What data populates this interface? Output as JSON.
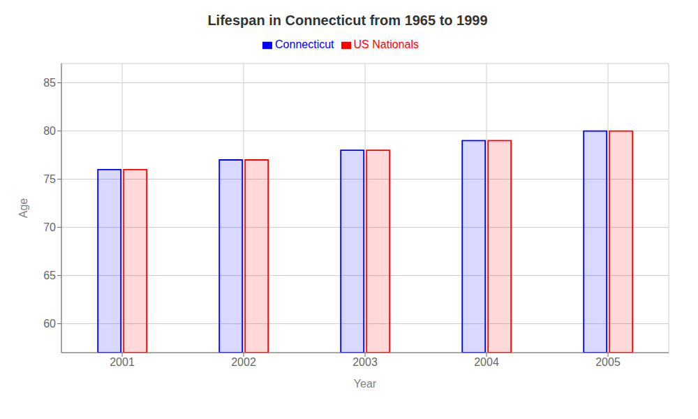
{
  "chart_data": {
    "type": "bar",
    "title": "Lifespan in Connecticut from 1965 to 1999",
    "x_label": "Year",
    "y_label": "Age",
    "categories": [
      2001,
      2002,
      2003,
      2004,
      2005
    ],
    "series": [
      {
        "name": "Connecticut",
        "color": "#0000ff",
        "values": [
          76,
          77,
          78,
          79,
          80
        ]
      },
      {
        "name": "US Nationals",
        "color": "#ff0000",
        "values": [
          76,
          77,
          78,
          79,
          80
        ]
      }
    ],
    "ylim": [
      57,
      87
    ],
    "yticks": [
      60,
      65,
      70,
      75,
      80,
      85
    ],
    "grid": true,
    "legend": "top"
  }
}
